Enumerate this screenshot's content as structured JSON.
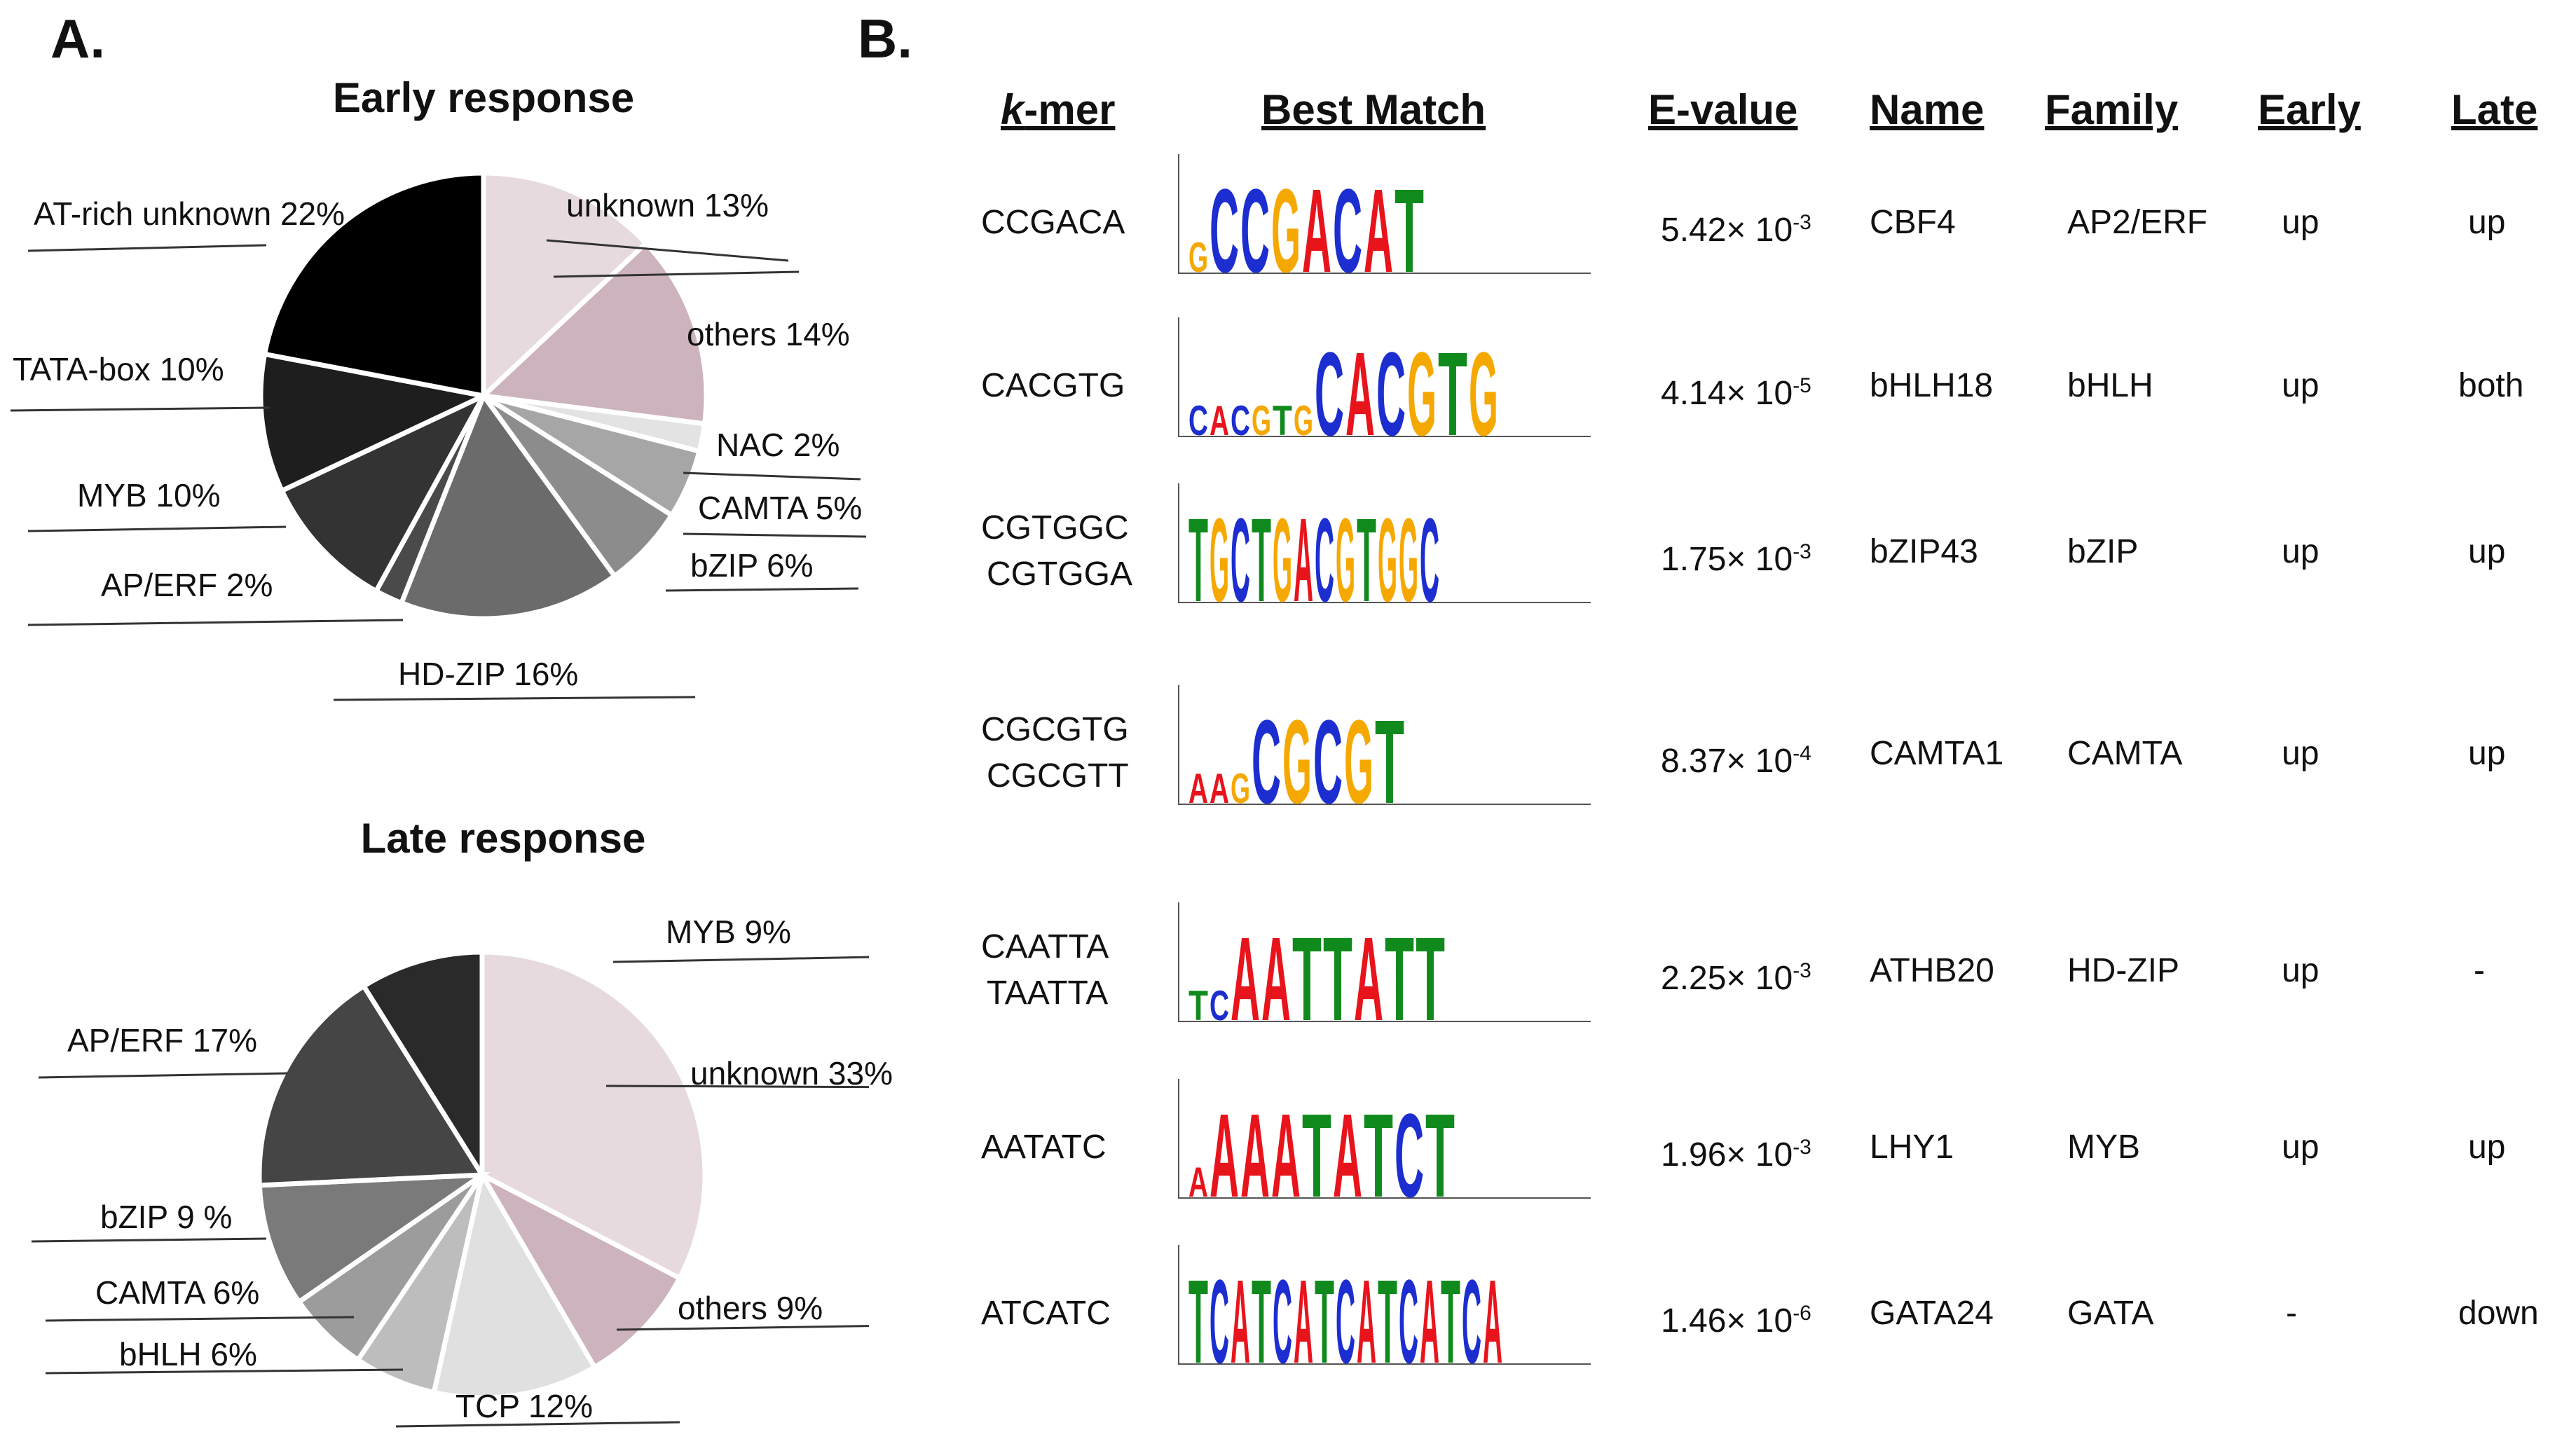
{
  "panel_a": {
    "label": "A.",
    "early_title": "Early response",
    "late_title": "Late response"
  },
  "panel_b": {
    "label": "B.",
    "headers": {
      "kmer_k": "k",
      "kmer_rest": "-mer",
      "best_match": "Best Match",
      "evalue": "E-value",
      "name": "Name",
      "family": "Family",
      "early": "Early",
      "late": "Late"
    },
    "rows": [
      {
        "kmer1": "CCGACA",
        "kmer2": "",
        "e_base": "5.42× 10",
        "e_exp": "-3",
        "name": "CBF4",
        "family": "AP2/ERF",
        "early": "up",
        "late": "up",
        "logo": [
          "G",
          "CCGACAT"
        ]
      },
      {
        "kmer1": "CACGTG",
        "kmer2": "",
        "e_base": "4.14× 10",
        "e_exp": "-5",
        "name": "bHLH18",
        "family": "bHLH",
        "early": "up",
        "late": "both",
        "logo": [
          "CACGTG",
          "CACGTG"
        ]
      },
      {
        "kmer1": "CGTGGC",
        "kmer2": "CGTGGA",
        "e_base": "1.75× 10",
        "e_exp": "-3",
        "name": "bZIP43",
        "family": "bZIP",
        "early": "up",
        "late": "up",
        "logo": [
          "TGCTGACGTGGC"
        ]
      },
      {
        "kmer1": "CGCGTG",
        "kmer2": "CGCGTT",
        "e_base": "8.37× 10",
        "e_exp": "-4",
        "name": "CAMTA1",
        "family": "CAMTA",
        "early": "up",
        "late": "up",
        "logo": [
          "AAG",
          "CGCGT"
        ]
      },
      {
        "kmer1": "CAATTA",
        "kmer2": "TAATTA",
        "e_base": "2.25× 10",
        "e_exp": "-3",
        "name": "ATHB20",
        "family": "HD-ZIP",
        "early": "up",
        "late": "-",
        "logo": [
          "TC",
          "AATTATT"
        ]
      },
      {
        "kmer1": "AATATC",
        "kmer2": "",
        "e_base": "1.96× 10",
        "e_exp": "-3",
        "name": "LHY1",
        "family": "MYB",
        "early": "up",
        "late": "up",
        "logo": [
          "A",
          "AAATATCT"
        ]
      },
      {
        "kmer1": "ATCATC",
        "kmer2": "",
        "e_base": "1.46× 10",
        "e_exp": "-6",
        "name": "GATA24",
        "family": "GATA",
        "early": "-",
        "late": "down",
        "logo": [
          "TCATCATCATCATCA"
        ]
      }
    ]
  },
  "chart_data": [
    {
      "type": "pie",
      "title": "Early response",
      "slices": [
        {
          "label": "unknown",
          "value": 13,
          "display": "unknown  13%",
          "color": "#e6dadf"
        },
        {
          "label": "others",
          "value": 14,
          "display": "others 14%",
          "color": "#cdb3bd"
        },
        {
          "label": "NAC",
          "value": 2,
          "display": "NAC 2%",
          "color": "#e3e3e3"
        },
        {
          "label": "CAMTA",
          "value": 5,
          "display": "CAMTA 5%",
          "color": "#a6a6a6"
        },
        {
          "label": "bZIP",
          "value": 6,
          "display": "bZIP 6%",
          "color": "#8c8c8c"
        },
        {
          "label": "HD-ZIP",
          "value": 16,
          "display": "HD-ZIP 16%",
          "color": "#6b6b6b"
        },
        {
          "label": "AP/ERF",
          "value": 2,
          "display": "AP/ERF 2%",
          "color": "#4a4a4a"
        },
        {
          "label": "MYB",
          "value": 10,
          "display": "MYB 10%",
          "color": "#333333"
        },
        {
          "label": "TATA-box",
          "value": 10,
          "display": "TATA-box 10%",
          "color": "#1e1e1e"
        },
        {
          "label": "AT-rich unknown",
          "value": 22,
          "display": "AT-rich unknown  22%",
          "color": "#000000"
        }
      ]
    },
    {
      "type": "pie",
      "title": "Late response",
      "slices": [
        {
          "label": "unknown",
          "value": 33,
          "display": "unknown  33%",
          "color": "#e6dadf"
        },
        {
          "label": "others",
          "value": 9,
          "display": "others 9%",
          "color": "#cdb3bd"
        },
        {
          "label": "TCP",
          "value": 12,
          "display": "TCP 12%",
          "color": "#e0e0e0"
        },
        {
          "label": "bHLH",
          "value": 6,
          "display": "bHLH 6%",
          "color": "#bdbdbd"
        },
        {
          "label": "CAMTA",
          "value": 6,
          "display": "CAMTA 6%",
          "color": "#9c9c9c"
        },
        {
          "label": "bZIP",
          "value": 9,
          "display": "bZIP 9 %",
          "color": "#7a7a7a"
        },
        {
          "label": "AP/ERF",
          "value": 17,
          "display": "AP/ERF 17%",
          "color": "#454545"
        },
        {
          "label": "MYB",
          "value": 9,
          "display": "MYB 9%",
          "color": "#2a2a2a"
        }
      ]
    }
  ],
  "colors": {
    "A": "#e8141c",
    "C": "#1c2ecf",
    "G": "#f5a800",
    "T": "#108a1d"
  }
}
